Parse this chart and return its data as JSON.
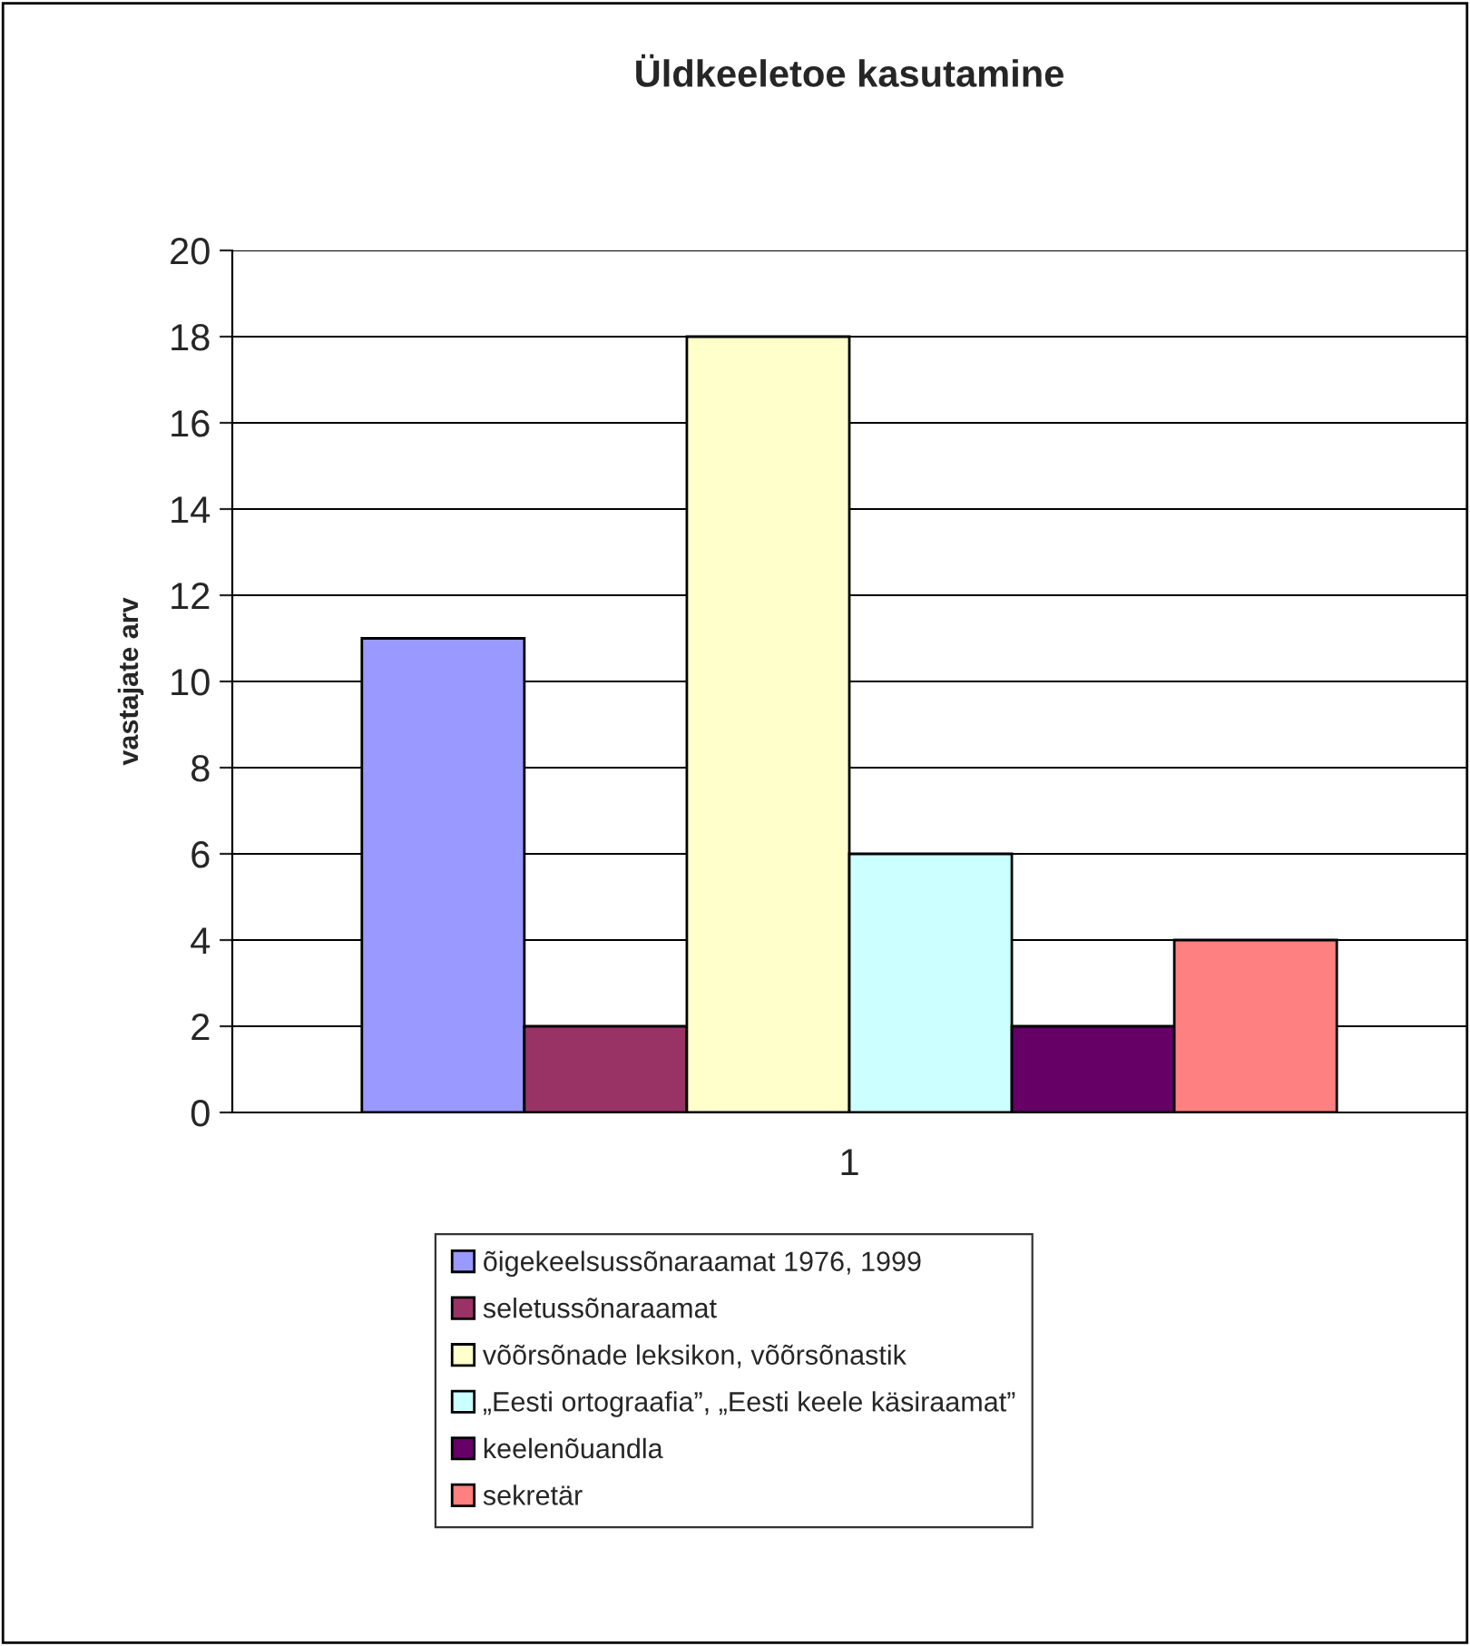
{
  "chart_data": {
    "type": "bar",
    "title": "Üldkeeletoe kasutamine",
    "ylabel": "vastajate arv",
    "categories": [
      "1"
    ],
    "series": [
      {
        "name": "õigekeelsussõnaraamat 1976, 1999",
        "color": "#9999ff",
        "values": [
          11
        ]
      },
      {
        "name": "seletussõnaraamat",
        "color": "#993366",
        "values": [
          2
        ]
      },
      {
        "name": "võõrsõnade leksikon, võõrsõnastik",
        "color": "#ffffcc",
        "values": [
          18
        ]
      },
      {
        "name": "„Eesti ortograafia”, „Eesti keele käsiraamat”",
        "color": "#ccffff",
        "values": [
          6
        ]
      },
      {
        "name": "keelenõuandla",
        "color": "#660066",
        "values": [
          2
        ]
      },
      {
        "name": "sekretär",
        "color": "#ff8080",
        "values": [
          4
        ]
      }
    ],
    "ylim": [
      0,
      20
    ],
    "yticks": [
      0,
      2,
      4,
      6,
      8,
      10,
      12,
      14,
      16,
      18,
      20
    ],
    "grid": "y",
    "legend": "bottom"
  }
}
